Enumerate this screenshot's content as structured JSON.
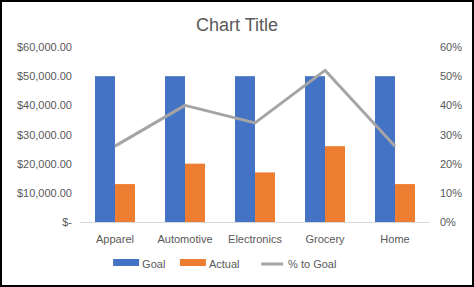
{
  "chart_data": {
    "type": "bar",
    "title": "Chart Title",
    "categories": [
      "Apparel",
      "Automotive",
      "Electronics",
      "Grocery",
      "Home"
    ],
    "series": [
      {
        "name": "Goal",
        "type": "bar",
        "color": "#4472c4",
        "values": [
          50000,
          50000,
          50000,
          50000,
          50000
        ]
      },
      {
        "name": "Actual",
        "type": "bar",
        "color": "#ed7d31",
        "values": [
          13000,
          20000,
          17000,
          26000,
          13000
        ]
      },
      {
        "name": "% to Goal",
        "type": "line",
        "axis": "y2",
        "color": "#a5a5a5",
        "line_style": "solid",
        "values": [
          26,
          40,
          34,
          52,
          26
        ]
      }
    ],
    "ylim": [
      0,
      60000
    ],
    "yticks": [
      {
        "value": 0,
        "label": "$-"
      },
      {
        "value": 10000,
        "label": "$10,000.00"
      },
      {
        "value": 20000,
        "label": "$20,000.00"
      },
      {
        "value": 30000,
        "label": "$30,000.00"
      },
      {
        "value": 40000,
        "label": "$40,000.00"
      },
      {
        "value": 50000,
        "label": "$50,000.00"
      },
      {
        "value": 60000,
        "label": "$60,000.00"
      }
    ],
    "y2lim": [
      0,
      60
    ],
    "y2ticks": [
      {
        "value": 0,
        "label": "0%"
      },
      {
        "value": 10,
        "label": "10%"
      },
      {
        "value": 20,
        "label": "20%"
      },
      {
        "value": 30,
        "label": "30%"
      },
      {
        "value": 40,
        "label": "40%"
      },
      {
        "value": 50,
        "label": "50%"
      },
      {
        "value": 60,
        "label": "60%"
      }
    ],
    "grid": false,
    "legend": "bottom"
  }
}
